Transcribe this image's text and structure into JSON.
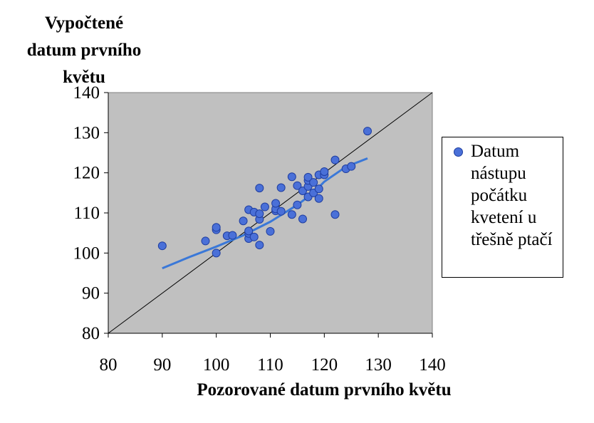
{
  "chart_data": {
    "type": "scatter",
    "ylabel_lines": [
      "Vypočtené",
      "datum prvního",
      "květu"
    ],
    "xlabel": "Pozorované datum prvního květu",
    "xlim": [
      80,
      140
    ],
    "ylim": [
      80,
      140
    ],
    "x_ticks": [
      80,
      90,
      100,
      110,
      120,
      130,
      140
    ],
    "y_ticks": [
      80,
      90,
      100,
      110,
      120,
      130,
      140
    ],
    "grid": false,
    "legend_position": "right",
    "legend_lines": [
      "Datum",
      "nástupu",
      "počátku",
      "kvetení u",
      "třešně ptačí"
    ],
    "colors": {
      "plot_background": "#c0c0c0",
      "marker_fill": "#4a70d8",
      "marker_edge": "#1f3ea0",
      "trend_line": "#3a78d8",
      "reference_line": "#000000"
    },
    "series": [
      {
        "name": "Datum nástupu počátku kvetení u třešně ptačí",
        "points": [
          [
            90,
            101.8
          ],
          [
            98,
            103
          ],
          [
            100,
            100
          ],
          [
            100,
            105.8
          ],
          [
            100,
            106.4
          ],
          [
            102,
            104.3
          ],
          [
            103,
            104.4
          ],
          [
            105,
            108
          ],
          [
            106,
            103.6
          ],
          [
            106,
            104.9
          ],
          [
            106,
            105.5
          ],
          [
            106,
            110.8
          ],
          [
            107,
            110.2
          ],
          [
            107,
            104
          ],
          [
            108,
            102
          ],
          [
            108,
            108.4
          ],
          [
            108,
            109.8
          ],
          [
            108,
            116.2
          ],
          [
            109,
            111.5
          ],
          [
            110,
            105.4
          ],
          [
            111,
            110.5
          ],
          [
            111,
            111
          ],
          [
            111,
            112.4
          ],
          [
            112,
            110.4
          ],
          [
            112,
            116.3
          ],
          [
            114,
            109.6
          ],
          [
            114,
            119
          ],
          [
            115,
            112
          ],
          [
            115,
            116.8
          ],
          [
            116,
            108.5
          ],
          [
            116,
            115.5
          ],
          [
            117,
            114
          ],
          [
            117,
            116.6
          ],
          [
            117,
            118.1
          ],
          [
            117,
            118.9
          ],
          [
            118,
            115
          ],
          [
            118,
            117.6
          ],
          [
            119,
            113.6
          ],
          [
            119,
            116
          ],
          [
            119,
            119.5
          ],
          [
            120,
            119.5
          ],
          [
            120,
            120.3
          ],
          [
            122,
            109.6
          ],
          [
            122,
            123.2
          ],
          [
            124,
            121
          ],
          [
            125,
            121.6
          ],
          [
            128,
            130.4
          ]
        ]
      }
    ],
    "trend_line": {
      "points": [
        [
          90,
          96.2
        ],
        [
          95,
          99.0
        ],
        [
          100,
          101.6
        ],
        [
          105,
          104.4
        ],
        [
          110,
          107.8
        ],
        [
          115,
          112.0
        ],
        [
          118,
          115.0
        ],
        [
          120,
          117.8
        ],
        [
          124,
          121.5
        ],
        [
          128,
          123.6
        ]
      ]
    },
    "reference_line": {
      "points": [
        [
          80,
          80
        ],
        [
          140,
          140
        ]
      ]
    }
  }
}
